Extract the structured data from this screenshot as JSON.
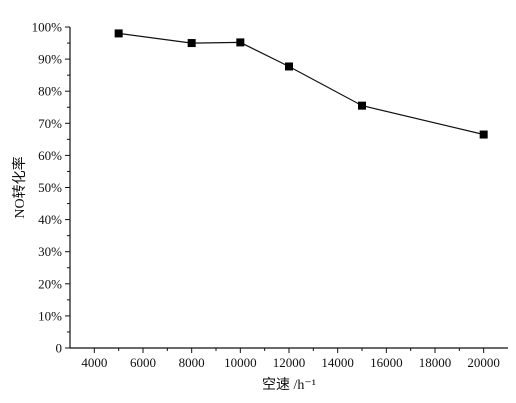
{
  "chart_data": {
    "type": "line",
    "x": [
      5000,
      8000,
      10000,
      12000,
      15000,
      20000
    ],
    "series": [
      {
        "values": [
          98,
          95,
          95.2,
          87.7,
          75.5,
          66.5
        ]
      }
    ],
    "xlabel": "空速 /h⁻¹",
    "ylabel": "NO转化率",
    "xlim": [
      3000,
      21000
    ],
    "ylim": [
      0,
      100
    ],
    "xticks": [
      4000,
      6000,
      8000,
      10000,
      12000,
      14000,
      16000,
      18000,
      20000
    ],
    "yticks": [
      0,
      10,
      20,
      30,
      40,
      50,
      60,
      70,
      80,
      90,
      100
    ],
    "ytick_labels": [
      "0",
      "10%",
      "20%",
      "30%",
      "40%",
      "50%",
      "60%",
      "70%",
      "80%",
      "90%",
      "100%"
    ],
    "marker": "square",
    "grid": false,
    "colors": {
      "line": "#111111",
      "marker": "#000000",
      "axis": "#111111"
    }
  }
}
